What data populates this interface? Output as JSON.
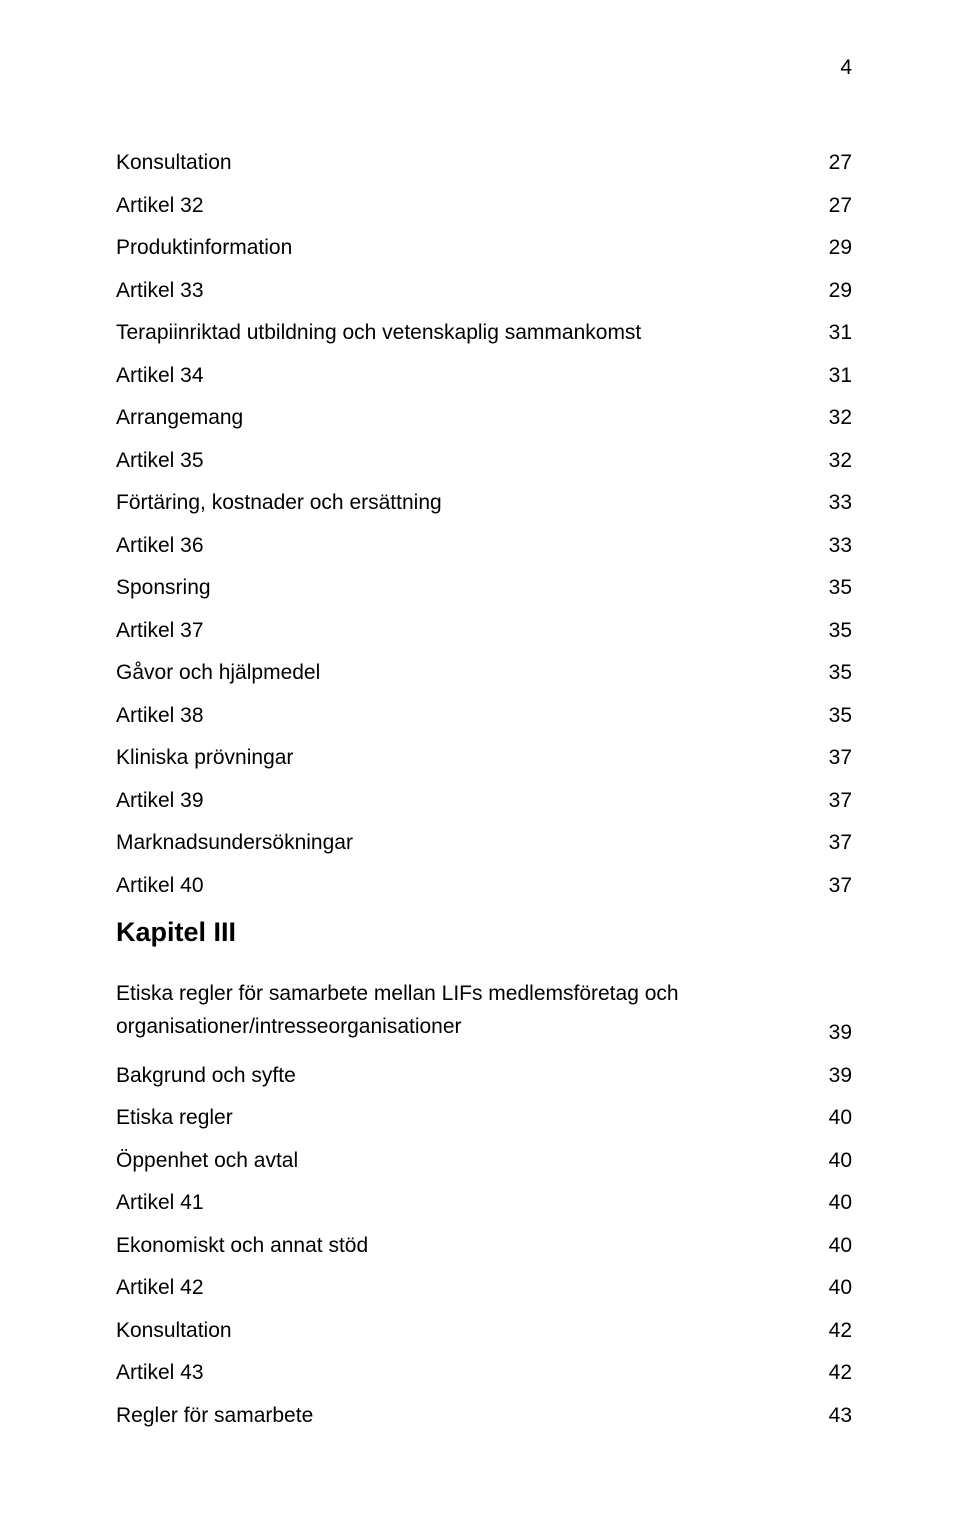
{
  "page_number": "4",
  "entries": [
    {
      "label": "Konsultation",
      "page": "27"
    },
    {
      "label": "Artikel 32",
      "page": "27"
    },
    {
      "label": "Produktinformation",
      "page": "29"
    },
    {
      "label": "Artikel 33",
      "page": "29"
    },
    {
      "label": "Terapiinriktad utbildning och vetenskaplig sammankomst",
      "page": "31"
    },
    {
      "label": "Artikel 34",
      "page": "31"
    },
    {
      "label": "Arrangemang",
      "page": "32"
    },
    {
      "label": "Artikel 35",
      "page": "32"
    },
    {
      "label": "Förtäring, kostnader och ersättning",
      "page": "33"
    },
    {
      "label": "Artikel 36",
      "page": "33"
    },
    {
      "label": "Sponsring",
      "page": "35"
    },
    {
      "label": "Artikel 37",
      "page": "35"
    },
    {
      "label": "Gåvor och hjälpmedel",
      "page": "35"
    },
    {
      "label": "Artikel 38",
      "page": "35"
    },
    {
      "label": "Kliniska prövningar",
      "page": "37"
    },
    {
      "label": "Artikel 39",
      "page": "37"
    },
    {
      "label": "Marknadsundersökningar",
      "page": "37"
    },
    {
      "label": "Artikel 40",
      "page": "37"
    }
  ],
  "section_heading": "Kapitel III",
  "entries2": [
    {
      "label": "Etiska regler för samarbete mellan LIFs medlemsföretag och organisationer/intresseorganisationer",
      "page": "39",
      "twoline": true
    },
    {
      "label": "Bakgrund och syfte",
      "page": "39"
    },
    {
      "label": "Etiska regler",
      "page": "40"
    },
    {
      "label": "Öppenhet och avtal",
      "page": "40"
    },
    {
      "label": "Artikel 41",
      "page": "40"
    },
    {
      "label": "Ekonomiskt och annat stöd",
      "page": "40"
    },
    {
      "label": "Artikel 42",
      "page": "40"
    },
    {
      "label": "Konsultation",
      "page": "42"
    },
    {
      "label": "Artikel 43",
      "page": "42"
    },
    {
      "label": "Regler för samarbete",
      "page": "43"
    }
  ]
}
